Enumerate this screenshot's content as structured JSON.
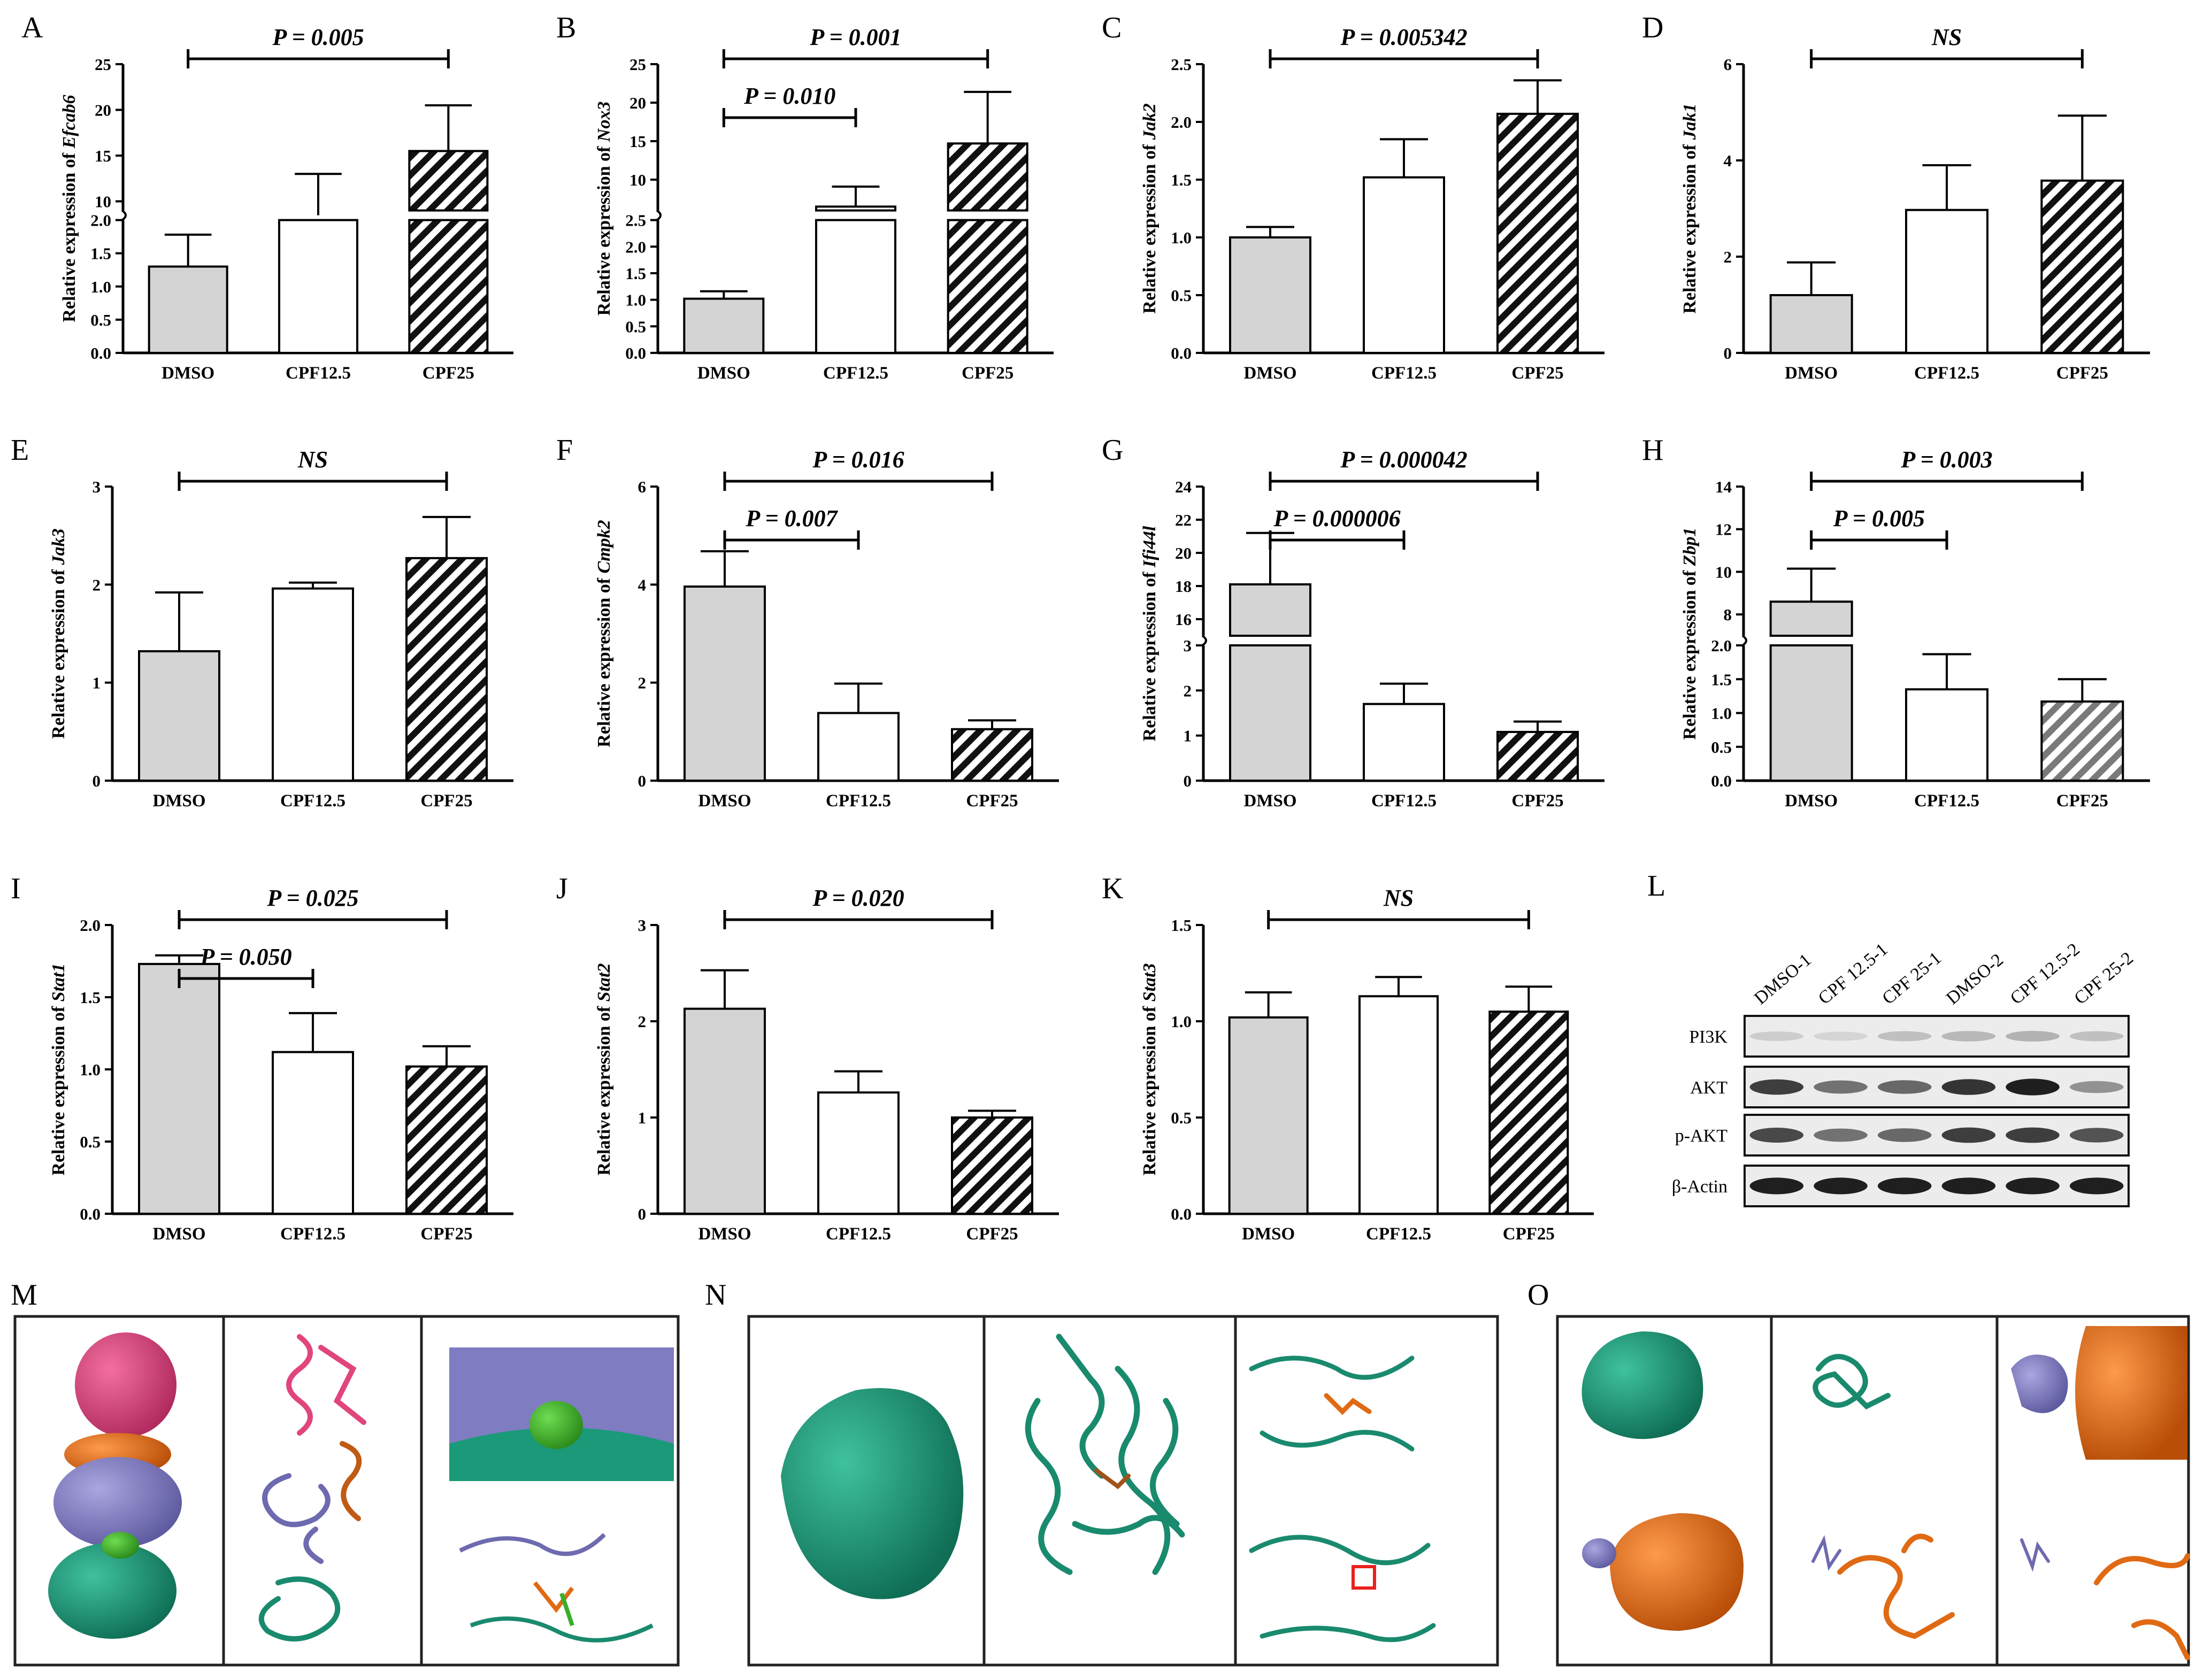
{
  "chart_data": [
    {
      "id": "A",
      "panel_label": "A",
      "type": "bar",
      "gene": "Efcab6",
      "ylabel_prefix": "Relative expression of ",
      "categories": [
        "DMSO",
        "CPF12.5",
        "CPF25"
      ],
      "values": [
        1.3,
        7.8,
        15.5
      ],
      "errors": [
        0.48,
        5.2,
        5.0
      ],
      "fills": [
        "grey",
        "white",
        "hatch"
      ],
      "axis_break": {
        "lower": [
          0,
          2.0
        ],
        "upper": [
          9,
          25
        ]
      },
      "yticks_lower": [
        "0.0",
        "0.5",
        "1.0",
        "1.5",
        "2.0"
      ],
      "yticks_upper": [
        "10",
        "15",
        "20",
        "25"
      ],
      "annotations": [
        {
          "text": "P = 0.005",
          "from": 0,
          "to": 2,
          "level": 0
        }
      ]
    },
    {
      "id": "B",
      "panel_label": "B",
      "type": "bar",
      "gene": "Nox3",
      "ylabel_prefix": "Relative expression of ",
      "categories": [
        "DMSO",
        "CPF12.5",
        "CPF25"
      ],
      "values": [
        1.02,
        6.5,
        14.7
      ],
      "errors": [
        0.14,
        2.6,
        6.7
      ],
      "fills": [
        "grey",
        "white",
        "hatch"
      ],
      "axis_break": {
        "lower": [
          0,
          2.5
        ],
        "upper": [
          6,
          25
        ]
      },
      "yticks_lower": [
        "0.0",
        "0.5",
        "1.0",
        "1.5",
        "2.0",
        "2.5"
      ],
      "yticks_upper": [
        "10",
        "15",
        "20",
        "25"
      ],
      "annotations": [
        {
          "text": "P = 0.010",
          "from": 0,
          "to": 1,
          "level": 0
        },
        {
          "text": "P = 0.001",
          "from": 0,
          "to": 2,
          "level": 1
        }
      ]
    },
    {
      "id": "C",
      "panel_label": "C",
      "type": "bar",
      "gene": "Jak2",
      "ylabel_prefix": "Relative expression of ",
      "categories": [
        "DMSO",
        "CPF12.5",
        "CPF25"
      ],
      "values": [
        1.0,
        1.52,
        2.07
      ],
      "errors": [
        0.09,
        0.33,
        0.29
      ],
      "fills": [
        "grey",
        "white",
        "hatch"
      ],
      "ylim": [
        0,
        2.5
      ],
      "yticks": [
        "0.0",
        "0.5",
        "1.0",
        "1.5",
        "2.0",
        "2.5"
      ],
      "annotations": [
        {
          "text": "P = 0.005342",
          "from": 0,
          "to": 2,
          "level": 0
        }
      ]
    },
    {
      "id": "D",
      "panel_label": "D",
      "type": "bar",
      "gene": "Jak1",
      "ylabel_prefix": "Relative expression of ",
      "categories": [
        "DMSO",
        "CPF12.5",
        "CPF25"
      ],
      "values": [
        1.2,
        2.97,
        3.58
      ],
      "errors": [
        0.68,
        0.93,
        1.35
      ],
      "fills": [
        "grey",
        "white",
        "hatch"
      ],
      "ylim": [
        0,
        6
      ],
      "yticks": [
        "0",
        "2",
        "4",
        "6"
      ],
      "annotations": [
        {
          "text": "NS",
          "from": 0,
          "to": 2,
          "level": 0
        }
      ]
    },
    {
      "id": "E",
      "panel_label": "E",
      "type": "bar",
      "gene": "Jak3",
      "ylabel_prefix": "Relative expression of ",
      "categories": [
        "DMSO",
        "CPF12.5",
        "CPF25"
      ],
      "values": [
        1.32,
        1.96,
        2.27
      ],
      "errors": [
        0.6,
        0.06,
        0.42
      ],
      "fills": [
        "grey",
        "white",
        "hatch"
      ],
      "ylim": [
        0,
        3
      ],
      "yticks": [
        "0",
        "1",
        "2",
        "3"
      ],
      "annotations": [
        {
          "text": "NS",
          "from": 0,
          "to": 2,
          "level": 0
        }
      ]
    },
    {
      "id": "F",
      "panel_label": "F",
      "type": "bar",
      "gene": "Cmpk2",
      "ylabel_prefix": "Relative expression of ",
      "categories": [
        "DMSO",
        "CPF12.5",
        "CPF25"
      ],
      "values": [
        3.96,
        1.38,
        1.05
      ],
      "errors": [
        0.72,
        0.6,
        0.18
      ],
      "fills": [
        "grey",
        "white",
        "hatch"
      ],
      "ylim": [
        0,
        6
      ],
      "yticks": [
        "0",
        "2",
        "4",
        "6"
      ],
      "annotations": [
        {
          "text": "P = 0.007",
          "from": 0,
          "to": 1,
          "level": 0
        },
        {
          "text": "P = 0.016",
          "from": 0,
          "to": 2,
          "level": 1
        }
      ]
    },
    {
      "id": "G",
      "panel_label": "G",
      "type": "bar",
      "gene": "Ifi44l",
      "ylabel_prefix": "Relative expression of ",
      "categories": [
        "DMSO",
        "CPF12.5",
        "CPF25"
      ],
      "values": [
        18.1,
        1.7,
        1.08
      ],
      "errors": [
        3.1,
        0.45,
        0.23
      ],
      "fills": [
        "grey",
        "white",
        "hatch"
      ],
      "axis_break": {
        "lower": [
          0,
          3
        ],
        "upper": [
          15,
          24
        ]
      },
      "yticks_lower": [
        "0",
        "1",
        "2",
        "3"
      ],
      "yticks_upper": [
        "16",
        "18",
        "20",
        "22",
        "24"
      ],
      "annotations": [
        {
          "text": "P = 0.000006",
          "from": 0,
          "to": 1,
          "level": 0
        },
        {
          "text": "P = 0.000042",
          "from": 0,
          "to": 2,
          "level": 1
        }
      ]
    },
    {
      "id": "H",
      "panel_label": "H",
      "type": "bar",
      "gene": "Zbp1",
      "ylabel_prefix": "Relative expression of ",
      "categories": [
        "DMSO",
        "CPF12.5",
        "CPF25"
      ],
      "values": [
        8.6,
        1.35,
        1.17
      ],
      "errors": [
        1.55,
        0.52,
        0.33
      ],
      "fills": [
        "grey",
        "white",
        "hatch-grey"
      ],
      "axis_break": {
        "lower": [
          0,
          2.0
        ],
        "upper": [
          7,
          14
        ]
      },
      "yticks_lower": [
        "0.0",
        "0.5",
        "1.0",
        "1.5",
        "2.0"
      ],
      "yticks_upper": [
        "8",
        "10",
        "12",
        "14"
      ],
      "annotations": [
        {
          "text": "P = 0.005",
          "from": 0,
          "to": 1,
          "level": 0
        },
        {
          "text": "P = 0.003",
          "from": 0,
          "to": 2,
          "level": 1
        }
      ]
    },
    {
      "id": "I",
      "panel_label": "I",
      "type": "bar",
      "gene": "Stat1",
      "ylabel_prefix": "Relative expression of ",
      "categories": [
        "DMSO",
        "CPF12.5",
        "CPF25"
      ],
      "values": [
        1.73,
        1.12,
        1.02
      ],
      "errors": [
        0.06,
        0.27,
        0.14
      ],
      "fills": [
        "grey",
        "white",
        "hatch"
      ],
      "ylim": [
        0,
        2.0
      ],
      "yticks": [
        "0.0",
        "0.5",
        "1.0",
        "1.5",
        "2.0"
      ],
      "annotations": [
        {
          "text": "P = 0.050",
          "from": 0,
          "to": 1,
          "level": 0
        },
        {
          "text": "P = 0.025",
          "from": 0,
          "to": 2,
          "level": 1
        }
      ]
    },
    {
      "id": "J",
      "panel_label": "J",
      "type": "bar",
      "gene": "Stat2",
      "ylabel_prefix": "Relative expression of ",
      "categories": [
        "DMSO",
        "CPF12.5",
        "CPF25"
      ],
      "values": [
        2.13,
        1.26,
        1.0
      ],
      "errors": [
        0.4,
        0.22,
        0.07
      ],
      "fills": [
        "grey",
        "white",
        "hatch"
      ],
      "ylim": [
        0,
        3
      ],
      "yticks": [
        "0",
        "1",
        "2",
        "3"
      ],
      "annotations": [
        {
          "text": "P = 0.020",
          "from": 0,
          "to": 2,
          "level": 0
        }
      ]
    },
    {
      "id": "K",
      "panel_label": "K",
      "type": "bar",
      "gene": "Stat3",
      "ylabel_prefix": "Relative expression of ",
      "categories": [
        "DMSO",
        "CPF12.5",
        "CPF25"
      ],
      "values": [
        1.02,
        1.13,
        1.05
      ],
      "errors": [
        0.13,
        0.1,
        0.13
      ],
      "fills": [
        "grey",
        "white",
        "hatch"
      ],
      "ylim": [
        0,
        1.5
      ],
      "yticks": [
        "0.0",
        "0.5",
        "1.0",
        "1.5"
      ],
      "annotations": [
        {
          "text": "NS",
          "from": 0,
          "to": 2,
          "level": 0
        }
      ]
    }
  ],
  "western_blot": {
    "panel_label": "L",
    "lanes": [
      "DMSO-1",
      "CPF 12.5-1",
      "CPF 25-1",
      "DMSO-2",
      "CPF 12.5-2",
      "CPF 25-2"
    ],
    "bands": [
      {
        "name": "PI3K",
        "intensity": [
          0.12,
          0.08,
          0.18,
          0.22,
          0.25,
          0.18
        ]
      },
      {
        "name": "AKT",
        "intensity": [
          0.8,
          0.55,
          0.6,
          0.85,
          0.95,
          0.4
        ]
      },
      {
        "name": "p-AKT",
        "intensity": [
          0.75,
          0.55,
          0.6,
          0.8,
          0.8,
          0.7
        ]
      },
      {
        "name": "β-Actin",
        "intensity": [
          0.95,
          0.95,
          0.95,
          0.95,
          0.95,
          0.95
        ]
      }
    ]
  },
  "structures": [
    {
      "panel_label": "M",
      "description": "docking"
    },
    {
      "panel_label": "N",
      "description": "docking"
    },
    {
      "panel_label": "O",
      "description": "docking"
    }
  ],
  "colors": {
    "grey_bar": "#d4d4d4",
    "teal": "#1a8a6e",
    "lavender": "#8a86c6",
    "orange": "#e06a14",
    "pink": "#e0457e",
    "brown": "#c05a14",
    "green": "#3aae2a"
  }
}
